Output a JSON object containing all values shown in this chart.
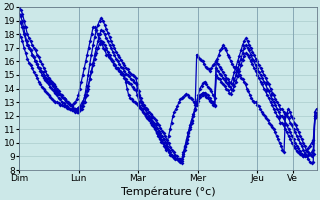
{
  "xlabel": "Température (°c)",
  "background_color": "#cce8e8",
  "grid_color": "#aacccc",
  "line_color": "#0000bb",
  "ylim": [
    8,
    20
  ],
  "yticks": [
    8,
    9,
    10,
    11,
    12,
    13,
    14,
    15,
    16,
    17,
    18,
    19,
    20
  ],
  "day_labels": [
    "Dim",
    "Lun",
    "Mar",
    "Mer",
    "Jeu",
    "Ve"
  ],
  "day_positions": [
    0,
    60,
    120,
    180,
    240,
    276
  ],
  "xlim": [
    0,
    300
  ],
  "series": [
    [
      19.5,
      19.3,
      19.0,
      18.5,
      18.0,
      17.5,
      17.2,
      17.0,
      16.8,
      16.5,
      16.3,
      16.0,
      15.8,
      15.6,
      15.5,
      15.3,
      15.2,
      15.0,
      14.8,
      14.7,
      14.5,
      14.4,
      14.3,
      14.2,
      14.0,
      13.8,
      13.7,
      13.6,
      13.5,
      13.4,
      13.3,
      13.2,
      13.1,
      13.0,
      12.9,
      12.8,
      12.8,
      12.9,
      13.0,
      13.2,
      13.5,
      14.0,
      14.5,
      15.0,
      15.5,
      16.0,
      16.5,
      17.0,
      17.5,
      18.0,
      18.5,
      18.5,
      18.3,
      18.0,
      17.7,
      17.5,
      17.3,
      17.0,
      16.8,
      16.5,
      16.5,
      16.3,
      16.2,
      16.0,
      15.8,
      15.7,
      15.5,
      15.4,
      15.3,
      15.2,
      15.1,
      15.0,
      14.5,
      14.0,
      13.5,
      13.3,
      13.2,
      13.1,
      13.0,
      12.9,
      12.8,
      12.7,
      12.6,
      12.5,
      12.3,
      12.1,
      12.0,
      11.9,
      11.8,
      11.7,
      11.5,
      11.3,
      11.0,
      10.7,
      10.5,
      10.3,
      10.1,
      10.0,
      9.8,
      9.5,
      10.0,
      10.5,
      11.0,
      11.5,
      12.0,
      12.3,
      12.5,
      12.7,
      13.0,
      13.2,
      13.3,
      13.4,
      13.5,
      13.6,
      13.5,
      13.4,
      13.3,
      13.2,
      13.0,
      12.8,
      16.5,
      16.3,
      16.2,
      16.1,
      16.0,
      15.8,
      15.6,
      15.5,
      15.4,
      15.3,
      15.5,
      15.7,
      15.8,
      16.0,
      16.2,
      16.5,
      16.8,
      17.0,
      17.2,
      17.0,
      16.8,
      16.5,
      16.3,
      16.0,
      15.8,
      15.6,
      15.5,
      15.3,
      15.2,
      15.0,
      14.8,
      14.7,
      14.5,
      14.3,
      14.0,
      13.8,
      13.5,
      13.3,
      13.1,
      13.0,
      13.0,
      12.8,
      12.7,
      12.5,
      12.3,
      12.1,
      12.0,
      11.8,
      11.7,
      11.5,
      11.3,
      11.2,
      11.0,
      10.8,
      10.5,
      10.3,
      10.0,
      9.8,
      9.5,
      9.3,
      12.0,
      12.2,
      12.5,
      12.3,
      12.0,
      11.8,
      11.5,
      11.3,
      11.0,
      10.8,
      10.5,
      10.3,
      10.0,
      9.8,
      9.5,
      9.3,
      9.2,
      9.1,
      9.0,
      9.2,
      12.0,
      12.2
    ],
    [
      20.0,
      19.8,
      19.5,
      19.0,
      18.5,
      18.0,
      17.7,
      17.5,
      17.2,
      17.0,
      16.8,
      16.5,
      16.3,
      16.0,
      15.8,
      15.5,
      15.3,
      15.0,
      14.8,
      14.6,
      14.5,
      14.3,
      14.2,
      14.0,
      13.8,
      13.6,
      13.5,
      13.3,
      13.2,
      13.0,
      12.9,
      12.8,
      12.7,
      12.6,
      12.5,
      12.4,
      12.3,
      12.5,
      12.7,
      13.0,
      13.5,
      14.2,
      15.0,
      15.8,
      16.5,
      17.2,
      17.8,
      18.3,
      18.7,
      19.0,
      19.2,
      19.0,
      18.7,
      18.4,
      18.1,
      17.8,
      17.5,
      17.2,
      17.0,
      16.7,
      16.5,
      16.3,
      16.1,
      15.9,
      15.7,
      15.5,
      15.4,
      15.2,
      15.1,
      15.0,
      14.9,
      14.8,
      14.3,
      13.8,
      13.3,
      13.0,
      12.8,
      12.6,
      12.5,
      12.3,
      12.1,
      12.0,
      11.8,
      11.7,
      11.5,
      11.3,
      11.1,
      10.9,
      10.7,
      10.5,
      10.2,
      10.0,
      9.7,
      9.5,
      9.3,
      9.1,
      9.0,
      8.8,
      8.6,
      8.5,
      9.0,
      9.5,
      10.0,
      10.5,
      11.0,
      11.5,
      12.0,
      12.5,
      13.0,
      13.5,
      14.0,
      14.2,
      14.4,
      14.5,
      14.3,
      14.1,
      14.0,
      13.8,
      13.5,
      13.3,
      16.0,
      15.8,
      15.6,
      15.4,
      15.2,
      15.0,
      14.8,
      14.7,
      14.5,
      14.4,
      14.8,
      15.2,
      15.6,
      16.0,
      16.4,
      16.8,
      17.2,
      17.5,
      17.7,
      17.5,
      17.2,
      17.0,
      16.7,
      16.5,
      16.2,
      16.0,
      15.7,
      15.5,
      15.3,
      15.0,
      14.8,
      14.5,
      14.3,
      14.0,
      13.7,
      13.5,
      13.2,
      13.0,
      12.8,
      12.5,
      12.5,
      12.3,
      12.1,
      12.0,
      11.8,
      11.5,
      11.3,
      11.0,
      10.8,
      10.5,
      10.3,
      10.0,
      9.8,
      9.5,
      9.2,
      9.0,
      8.8,
      8.6,
      8.5,
      8.6,
      12.3,
      12.5
    ],
    [
      19.0,
      18.8,
      18.5,
      18.0,
      17.6,
      17.2,
      17.0,
      16.8,
      16.5,
      16.3,
      16.0,
      15.8,
      15.5,
      15.3,
      15.0,
      14.8,
      14.6,
      14.5,
      14.3,
      14.1,
      14.0,
      13.8,
      13.7,
      13.5,
      13.3,
      13.2,
      13.0,
      12.9,
      12.8,
      12.7,
      12.6,
      12.5,
      12.4,
      12.4,
      12.3,
      12.3,
      12.3,
      12.4,
      12.5,
      12.7,
      13.0,
      13.5,
      14.0,
      14.7,
      15.3,
      15.9,
      16.5,
      17.0,
      17.5,
      18.0,
      18.3,
      18.2,
      18.0,
      17.7,
      17.5,
      17.2,
      17.0,
      16.7,
      16.5,
      16.2,
      16.0,
      15.8,
      15.6,
      15.5,
      15.3,
      15.1,
      15.0,
      14.9,
      14.7,
      14.6,
      14.5,
      14.4,
      14.0,
      13.5,
      13.0,
      12.8,
      12.6,
      12.4,
      12.2,
      12.0,
      11.8,
      11.6,
      11.5,
      11.3,
      11.1,
      10.9,
      10.7,
      10.5,
      10.3,
      10.1,
      9.8,
      9.5,
      9.3,
      9.1,
      9.0,
      8.9,
      8.8,
      8.8,
      8.8,
      8.8,
      9.3,
      9.8,
      10.3,
      10.8,
      11.3,
      11.7,
      12.1,
      12.5,
      12.9,
      13.2,
      13.5,
      13.6,
      13.7,
      13.7,
      13.6,
      13.5,
      13.3,
      13.1,
      13.0,
      12.8,
      15.5,
      15.3,
      15.1,
      15.0,
      14.8,
      14.6,
      14.5,
      14.3,
      14.2,
      14.0,
      14.3,
      14.6,
      15.0,
      15.4,
      15.8,
      16.2,
      16.6,
      17.0,
      17.2,
      17.0,
      16.8,
      16.5,
      16.2,
      16.0,
      15.7,
      15.5,
      15.2,
      15.0,
      14.8,
      14.5,
      14.3,
      14.0,
      13.8,
      13.5,
      13.2,
      13.0,
      12.8,
      12.5,
      12.3,
      12.0,
      12.0,
      11.8,
      11.5,
      11.3,
      11.0,
      10.8,
      10.5,
      10.3,
      10.0,
      9.8,
      9.6,
      9.4,
      9.2,
      9.0,
      9.0,
      9.0,
      9.1,
      9.2,
      9.3,
      9.5,
      12.0,
      12.2
    ],
    [
      18.0,
      17.8,
      17.5,
      17.0,
      16.6,
      16.2,
      15.9,
      15.7,
      15.5,
      15.2,
      15.0,
      14.8,
      14.5,
      14.3,
      14.1,
      14.0,
      13.8,
      13.7,
      13.5,
      13.4,
      13.2,
      13.1,
      13.0,
      13.0,
      12.9,
      12.8,
      12.8,
      12.7,
      12.7,
      12.6,
      12.6,
      12.5,
      12.5,
      12.5,
      12.5,
      12.5,
      12.6,
      12.7,
      12.9,
      13.1,
      13.4,
      13.8,
      14.2,
      14.7,
      15.2,
      15.7,
      16.2,
      16.6,
      17.0,
      17.3,
      17.5,
      17.4,
      17.2,
      17.0,
      16.7,
      16.5,
      16.2,
      16.0,
      15.7,
      15.5,
      15.5,
      15.3,
      15.1,
      15.0,
      14.8,
      14.7,
      14.5,
      14.4,
      14.3,
      14.1,
      14.0,
      13.9,
      13.5,
      13.0,
      12.6,
      12.4,
      12.2,
      12.0,
      11.8,
      11.7,
      11.5,
      11.3,
      11.2,
      11.0,
      10.8,
      10.6,
      10.4,
      10.2,
      10.0,
      9.8,
      9.6,
      9.3,
      9.1,
      9.0,
      8.9,
      8.8,
      8.8,
      8.7,
      8.7,
      8.7,
      9.2,
      9.7,
      10.2,
      10.7,
      11.2,
      11.6,
      12.0,
      12.4,
      12.8,
      13.1,
      13.4,
      13.5,
      13.5,
      13.5,
      13.4,
      13.3,
      13.1,
      13.0,
      12.8,
      12.7,
      15.0,
      14.8,
      14.7,
      14.5,
      14.3,
      14.2,
      14.0,
      13.9,
      13.7,
      13.6,
      13.9,
      14.2,
      14.5,
      14.9,
      15.3,
      15.7,
      16.1,
      16.4,
      16.6,
      16.5,
      16.3,
      16.0,
      15.8,
      15.5,
      15.3,
      15.0,
      14.8,
      14.5,
      14.3,
      14.0,
      13.8,
      13.5,
      13.3,
      13.0,
      12.8,
      12.5,
      12.3,
      12.0,
      11.8,
      11.5,
      11.5,
      11.3,
      11.0,
      10.8,
      10.5,
      10.3,
      10.0,
      9.8,
      9.6,
      9.4,
      9.3,
      9.2,
      9.1,
      9.0,
      9.2,
      9.4,
      9.6,
      9.8,
      10.0,
      10.2,
      11.8,
      12.0
    ]
  ],
  "marker": "D",
  "marker_size": 2,
  "line_width": 0.9,
  "tick_fontsize": 6.5,
  "xlabel_fontsize": 8
}
